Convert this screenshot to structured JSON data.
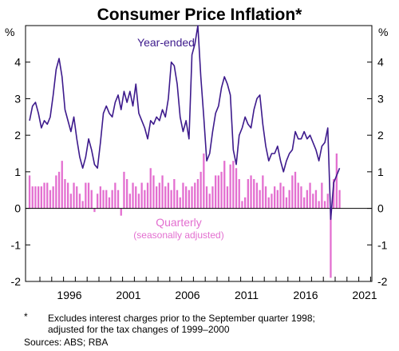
{
  "chart_data": {
    "type": "bar+line",
    "title": "Consumer Price Inflation*",
    "unit_left": "%",
    "unit_right": "%",
    "y_ticks": [
      "4",
      "3",
      "2",
      "1",
      "0",
      "-1",
      "-2"
    ],
    "ylim": [
      -2,
      5
    ],
    "x_ticks": [
      "1996",
      "2001",
      "2006",
      "2011",
      "2016",
      "2021"
    ],
    "x_start": "1993-Q1",
    "series": [
      {
        "name": "Year-ended",
        "type": "line",
        "color": "#3d1a8c",
        "values": [
          2.4,
          2.8,
          2.9,
          2.6,
          2.2,
          2.4,
          2.3,
          2.5,
          3.1,
          3.8,
          4.1,
          3.6,
          2.7,
          2.4,
          2.1,
          2.5,
          1.9,
          1.4,
          1.1,
          1.4,
          1.9,
          1.6,
          1.2,
          1.1,
          1.8,
          2.6,
          2.8,
          2.6,
          2.5,
          2.9,
          3.1,
          2.7,
          3.2,
          2.9,
          3.2,
          2.8,
          3.4,
          2.6,
          2.4,
          2.2,
          1.9,
          2.4,
          2.3,
          2.5,
          2.4,
          2.7,
          2.5,
          3.0,
          4.0,
          3.9,
          3.4,
          2.5,
          2.1,
          2.4,
          1.9,
          4.2,
          4.5,
          5.0,
          3.6,
          2.5,
          1.3,
          1.5,
          2.1,
          2.6,
          2.8,
          3.3,
          3.6,
          3.4,
          3.1,
          1.6,
          1.2,
          2.0,
          2.2,
          2.5,
          2.3,
          2.2,
          2.7,
          3.0,
          3.1,
          2.3,
          1.7,
          1.3,
          1.5,
          1.5,
          1.7,
          1.3,
          1.0,
          1.3,
          1.5,
          1.6,
          2.1,
          1.9,
          1.9,
          2.1,
          1.9,
          2.0,
          1.8,
          1.6,
          1.3,
          1.7,
          1.8,
          2.2,
          -0.3,
          0.7,
          0.9,
          1.1
        ]
      },
      {
        "name": "Quarterly",
        "label_note": "(seasonally adjusted)",
        "type": "bar",
        "color": "#e36fd0",
        "values": [
          0.9,
          0.6,
          0.6,
          0.6,
          0.6,
          0.7,
          0.7,
          0.5,
          0.6,
          0.9,
          1.0,
          1.3,
          0.8,
          0.7,
          0.4,
          0.7,
          0.6,
          0.4,
          0.2,
          0.7,
          0.7,
          0.5,
          -0.1,
          0.4,
          0.6,
          0.5,
          0.5,
          0.3,
          0.5,
          0.7,
          0.5,
          -0.2,
          1.0,
          0.8,
          0.4,
          0.7,
          0.6,
          0.4,
          0.7,
          0.5,
          0.7,
          1.1,
          0.9,
          0.6,
          0.7,
          0.9,
          0.6,
          0.7,
          0.5,
          0.8,
          0.5,
          0.3,
          0.7,
          0.6,
          0.5,
          0.6,
          0.7,
          0.8,
          1.0,
          1.5,
          0.6,
          0.4,
          0.6,
          0.9,
          0.9,
          1.0,
          1.3,
          0.6,
          1.2,
          1.3,
          1.1,
          0.8,
          0.2,
          0.3,
          0.8,
          0.9,
          0.8,
          0.7,
          0.5,
          0.9,
          0.6,
          0.3,
          0.4,
          0.6,
          0.5,
          0.7,
          0.6,
          0.3,
          0.5,
          0.9,
          1.0,
          0.7,
          0.6,
          0.3,
          0.5,
          0.7,
          0.4,
          0.5,
          0.2,
          0.7,
          0.2,
          0.4,
          -1.9,
          0.8,
          1.5,
          0.5
        ]
      }
    ],
    "legend_labels": {
      "line": "Year-ended",
      "bar": "Quarterly",
      "bar_note": "(seasonally adjusted)"
    },
    "grid": false,
    "zero_line": true
  },
  "footnote": {
    "mark": "*",
    "line1": "Excludes interest charges prior to the September quarter 1998;",
    "line2": "adjusted for the tax changes of 1999–2000"
  },
  "sources": "Sources: ABS; RBA"
}
